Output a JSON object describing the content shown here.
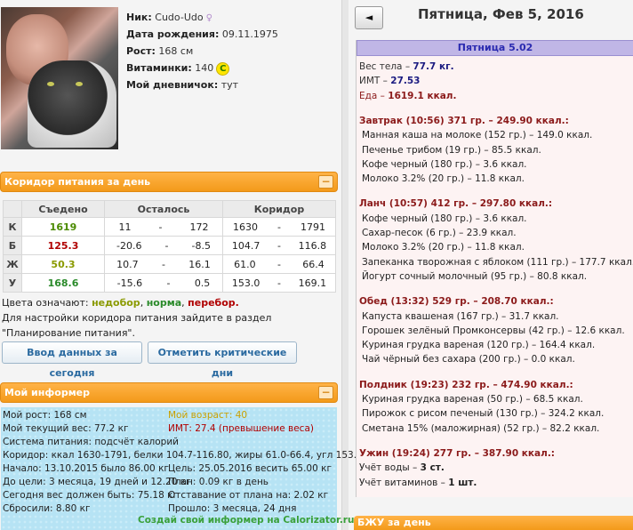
{
  "profile": {
    "nick_label": "Ник:",
    "nick": "Cudo-Udo",
    "birth_label": "Дата рождения:",
    "birth": "09.11.1975",
    "height_label": "Рост:",
    "height": "168 см",
    "vitamins_label": "Витаминки:",
    "vitamins": "140",
    "vitamin_icon_letter": "C",
    "diary_label": "Мой дневничок:",
    "diary_value": "тут"
  },
  "corridor": {
    "title": "Коридор питания за день",
    "headers": [
      "",
      "Съедено",
      "Осталось",
      "Коридор"
    ],
    "rows": [
      {
        "label": "К",
        "eaten": "1619",
        "eaten_color": "#4a8a00",
        "left_min": "11",
        "dash": "-",
        "left_max": "172",
        "c_min": "1630",
        "c_max": "1791"
      },
      {
        "label": "Б",
        "eaten": "125.3",
        "eaten_color": "#b00000",
        "left_min": "-20.6",
        "dash": "-",
        "left_max": "-8.5",
        "c_min": "104.7",
        "c_max": "116.8"
      },
      {
        "label": "Ж",
        "eaten": "50.3",
        "eaten_color": "#8a9a00",
        "left_min": "10.7",
        "dash": "-",
        "left_max": "16.1",
        "c_min": "61.0",
        "c_max": "66.4"
      },
      {
        "label": "У",
        "eaten": "168.6",
        "eaten_color": "#2a8a2a",
        "left_min": "-15.6",
        "dash": "-",
        "left_max": "0.5",
        "c_min": "153.0",
        "c_max": "169.1"
      }
    ],
    "legend_prefix": "Цвета означают:",
    "legend_under": "недобор",
    "legend_norm": "норма",
    "legend_over": "перебор.",
    "legend_sep": ",",
    "note_line1": "Для настройки коридора питания зайдите в раздел",
    "note_line2": "\"Планирование питания\".",
    "btn_enter": "Ввод данных за сегодня",
    "btn_critical": "Отметить критические дни"
  },
  "informer": {
    "title": "Мой информер",
    "rows": [
      {
        "left": "Мой рост: 168 см",
        "right": "Мой возраст: 40",
        "right_color": "#c9a000"
      },
      {
        "left": "Мой текущий вес: 77.2 кг",
        "right": "ИМТ: 27.4 (превышение веса)",
        "right_color": "#b00000"
      },
      {
        "left": "Система питания: подсчёт калорий",
        "right": "",
        "right_color": "#222"
      },
      {
        "left": "Коридор: ккал 1630-1791, белки 104.7-116.80, жиры 61.0-66.4, угл 153.0-169.1",
        "right": "",
        "right_color": "#222"
      },
      {
        "left": "Начало: 13.10.2015 было 86.00 кг",
        "right": "Цель: 25.05.2016 весить 65.00 кг",
        "right_color": "#222"
      },
      {
        "left": "До цели: 3 месяца, 19 дней и 12.20 кг",
        "right": "План: 0.09 кг в день",
        "right_color": "#222"
      },
      {
        "left": "Сегодня вес должен быть: 75.18 кг",
        "right": "Отставание от плана на: 2.02 кг",
        "right_color": "#222"
      },
      {
        "left": "Сбросили: 8.80 кг",
        "right": "Прошло: 3 месяца, 24 дня",
        "right_color": "#222"
      }
    ],
    "footer": "Создай свой информер на Calorizator.ru"
  },
  "diary": {
    "prev_button": "◄",
    "date_title": "Пятница, Фев 5, 2016",
    "day_header": "Пятница 5.02",
    "weight_label": "Вес тела – ",
    "weight": "77.7 кг.",
    "bmi_label": "ИМТ – ",
    "bmi": "27.53",
    "food_label": "Еда – ",
    "food": "1619.1 ккал.",
    "meals": [
      {
        "title": "Завтрак (10:56) 371 гр. – 249.90 ккал.:",
        "items": [
          "Манная каша на молоке (152 гр.) – 149.0 ккал.",
          "Печенье трибом (19 гр.) – 85.5 ккал.",
          "Кофе черный (180 гр.) – 3.6 ккал.",
          "Молоко 3.2% (20 гр.) – 11.8 ккал."
        ]
      },
      {
        "title": "Ланч (10:57) 412 гр. – 297.80 ккал.:",
        "items": [
          "Кофе черный (180 гр.) – 3.6 ккал.",
          "Сахар-песок (6 гр.) – 23.9 ккал.",
          "Молоко 3.2% (20 гр.) – 11.8 ккал.",
          "Запеканка творожная с яблоком (111 гр.) – 177.7 ккал.",
          "Йогурт сочный молочный (95 гр.) – 80.8 ккал."
        ]
      },
      {
        "title": "Обед (13:32) 529 гр. – 208.70 ккал.:",
        "items": [
          "Капуста квашеная (167 гр.) – 31.7 ккал.",
          "Горошек зелёный Промконсервы (42 гр.) – 12.6 ккал.",
          "Куриная грудка вареная (120 гр.) – 164.4 ккал.",
          "Чай чёрный без сахара (200 гр.) – 0.0 ккал."
        ]
      },
      {
        "title": "Полдник (19:23) 232 гр. – 474.90 ккал.:",
        "items": [
          "Куриная грудка вареная (50 гр.) – 68.5 ккал.",
          "Пирожок с рисом печеный (130 гр.) – 324.2 ккал.",
          "Сметана 15% (маложирная) (52 гр.) – 82.2 ккал."
        ]
      },
      {
        "title": "Ужин (19:24) 277 гр. – 387.90 ккал.:",
        "items": []
      }
    ],
    "water_label": "Учёт воды – ",
    "water": "3 ст.",
    "vitamins_label": "Учёт витаминов – ",
    "vitamins": "1 шт.",
    "bju_header": "БЖУ за день"
  },
  "colors": {
    "accent_orange": "#f39a1a",
    "under": "#8a9a00",
    "norm": "#2a8a2a",
    "over": "#b00000",
    "meal_title": "#8b1a1a",
    "day_header_bg": "#c0b6e6"
  }
}
